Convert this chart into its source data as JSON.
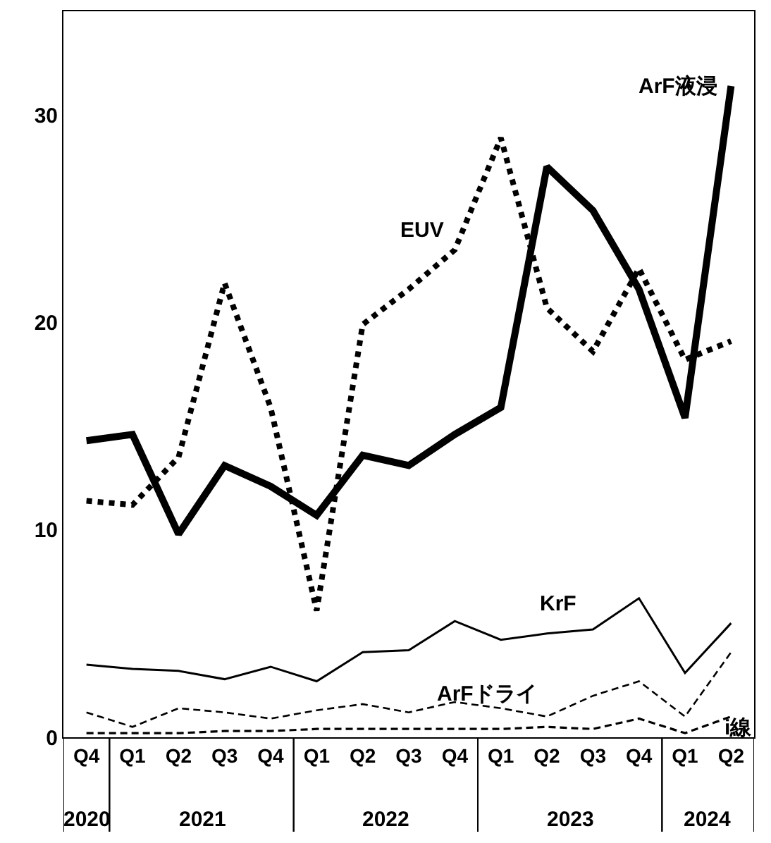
{
  "chart_data": {
    "type": "line",
    "ylim": [
      0,
      35
    ],
    "yticks": [
      0,
      10,
      20,
      30
    ],
    "legend": false,
    "marker": "none",
    "categories": [
      "Q4",
      "Q1",
      "Q2",
      "Q3",
      "Q4",
      "Q1",
      "Q2",
      "Q3",
      "Q4",
      "Q1",
      "Q2",
      "Q3",
      "Q4",
      "Q1",
      "Q2"
    ],
    "annotations": [
      "2020",
      "2021",
      "2022",
      "2023",
      "2024"
    ],
    "series": [
      {
        "name": "ArF液浸",
        "color": "#000000",
        "line_style": "solid",
        "values": [
          14.3,
          14.6,
          9.8,
          13.1,
          12.1,
          10.7,
          13.6,
          13.1,
          14.6,
          15.9,
          27.5,
          25.4,
          21.6,
          15.4,
          31.4
        ]
      },
      {
        "name": "EUV",
        "color": "#000000",
        "line_style": "dotted",
        "values": [
          11.4,
          11.2,
          13.5,
          21.9,
          15.9,
          6.1,
          19.9,
          21.6,
          23.5,
          28.9,
          20.7,
          18.6,
          22.6,
          18.2,
          19.1
        ]
      },
      {
        "name": "KrF",
        "color": "#000000",
        "line_style": "solid",
        "values": [
          3.5,
          3.3,
          3.2,
          2.8,
          3.4,
          2.7,
          4.1,
          4.2,
          5.6,
          4.7,
          5.0,
          5.2,
          6.7,
          3.1,
          5.5
        ]
      },
      {
        "name": "ArFドライ",
        "color": "#000000",
        "line_style": "dashed",
        "values": [
          1.2,
          0.5,
          1.4,
          1.2,
          0.9,
          1.3,
          1.6,
          1.2,
          1.7,
          1.4,
          1.0,
          2.0,
          2.7,
          1.0,
          4.1
        ]
      },
      {
        "name": "i線",
        "color": "#000000",
        "line_style": "dashed",
        "values": [
          0.2,
          0.2,
          0.2,
          0.3,
          0.3,
          0.4,
          0.4,
          0.4,
          0.4,
          0.4,
          0.5,
          0.4,
          0.9,
          0.2,
          1.0
        ]
      }
    ]
  }
}
